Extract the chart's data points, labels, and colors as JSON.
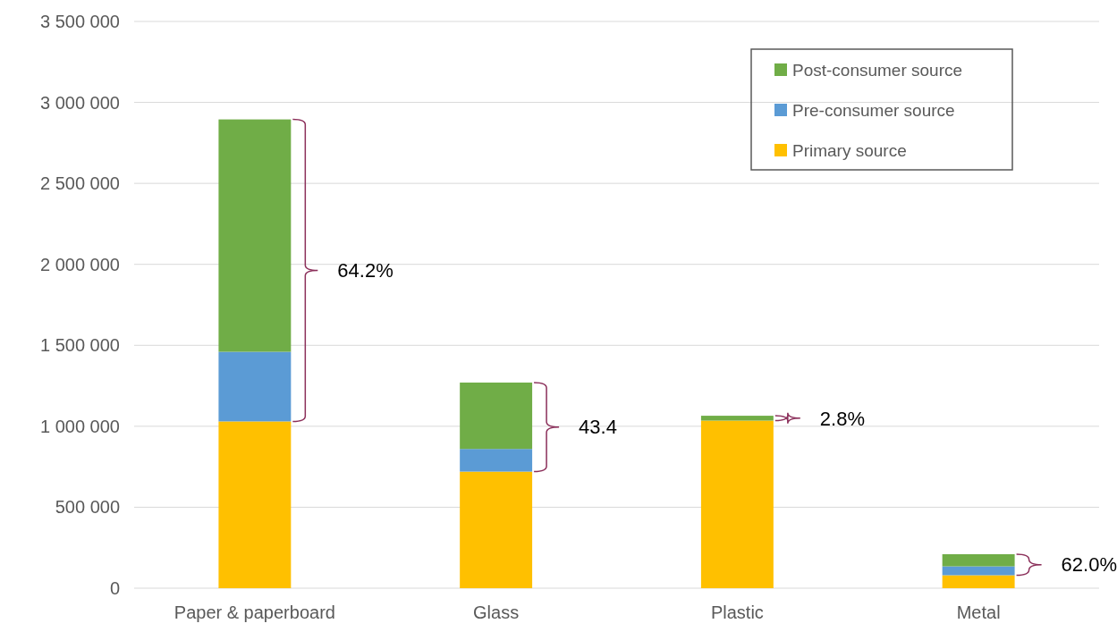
{
  "chart_data": {
    "type": "bar",
    "stacked": true,
    "categories": [
      "Paper & paperboard",
      "Glass",
      "Plastic",
      "Metal"
    ],
    "series": [
      {
        "name": "Primary source",
        "color": "#ffc000",
        "values": [
          1030000,
          720000,
          1035000,
          80000
        ]
      },
      {
        "name": "Pre-consumer source",
        "color": "#5b9bd5",
        "values": [
          430000,
          140000,
          0,
          55000
        ]
      },
      {
        "name": "Post-consumer source",
        "color": "#70ad47",
        "values": [
          1435000,
          410000,
          30000,
          75000
        ]
      }
    ],
    "ylim": [
      0,
      3500000
    ],
    "yticks": [
      {
        "value": 0,
        "label": "0"
      },
      {
        "value": 500000,
        "label": "500 000"
      },
      {
        "value": 1000000,
        "label": "1 000 000"
      },
      {
        "value": 1500000,
        "label": "1 500 000"
      },
      {
        "value": 2000000,
        "label": "2 000 000"
      },
      {
        "value": 2500000,
        "label": "2 500 000"
      },
      {
        "value": 3000000,
        "label": "3 000 000"
      },
      {
        "value": 3500000,
        "label": "3 500 000"
      }
    ],
    "grid": "y",
    "legend": "top right",
    "annotations": [
      "64.2%",
      "43.4",
      "2.8%",
      "62.0%"
    ]
  }
}
